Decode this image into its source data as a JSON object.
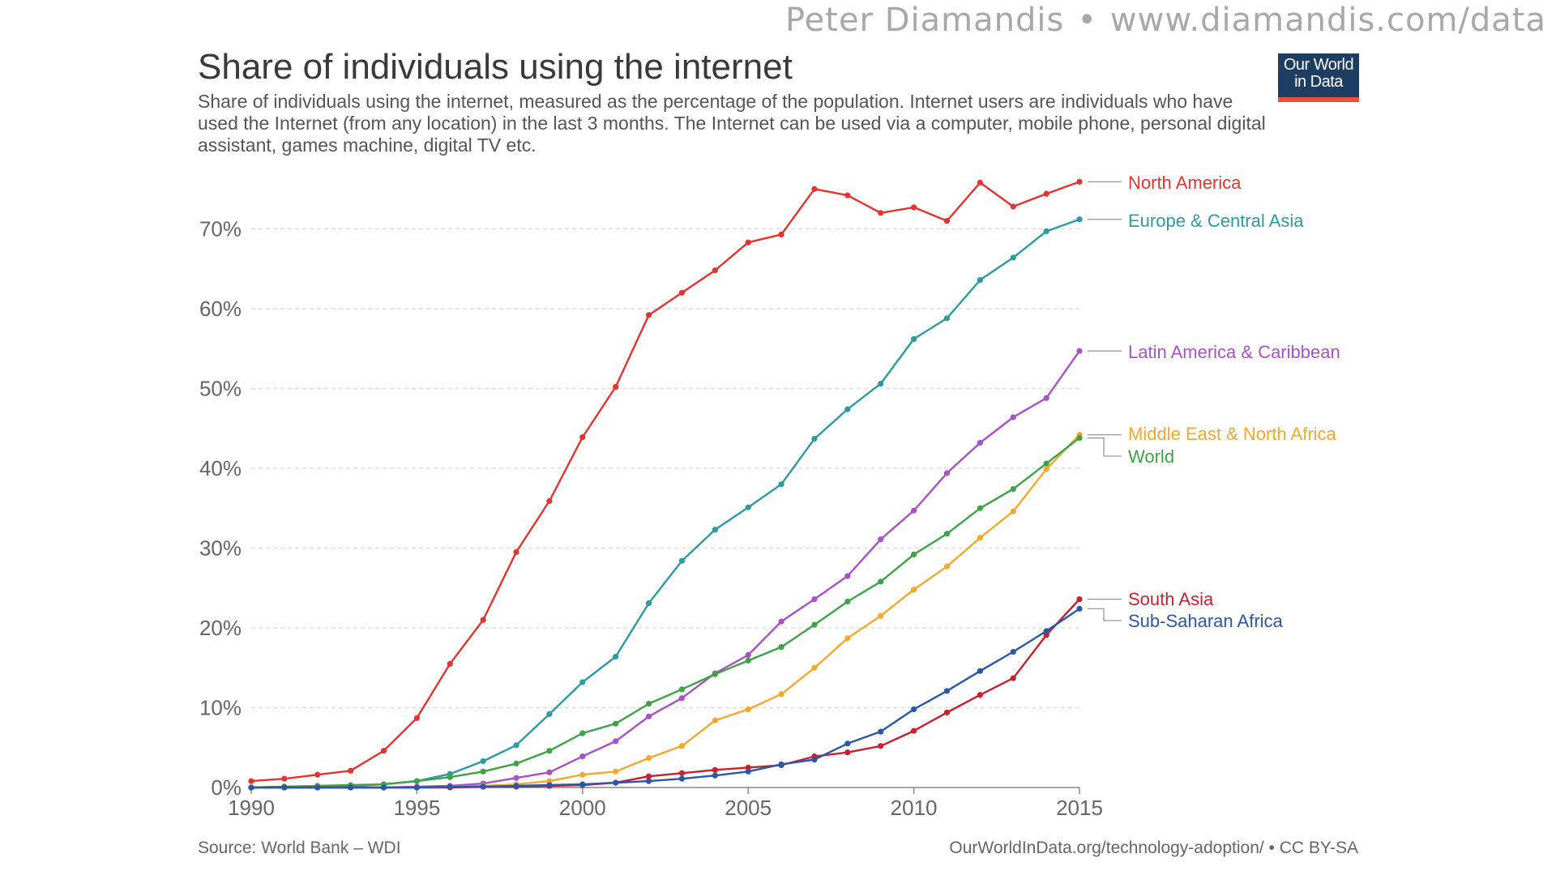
{
  "header": {
    "credit_name": "Peter Diamandis",
    "credit_separator": "•",
    "credit_url": "www.diamandis.com/data",
    "logo_line1": "Our World",
    "logo_line2": "in Data"
  },
  "footer": {
    "source": "Source: World Bank – WDI",
    "license": "OurWorldInData.org/technology-adoption/ • CC BY-SA"
  },
  "colors": {
    "logo_bg": "#1d3d63",
    "logo_bar": "#e6553b",
    "grid": "#dddddd"
  },
  "chart_data": {
    "type": "line",
    "title": "Share of individuals using the internet",
    "subtitle": "Share of individuals using the internet, measured as the percentage of the population. Internet users are individuals who have used the Internet (from any location) in the last 3 months. The Internet can be used via a computer, mobile phone, personal digital assistant, games machine, digital TV etc.",
    "xlabel": "",
    "ylabel": "",
    "xlim": [
      1990,
      2015
    ],
    "ylim": [
      0,
      75
    ],
    "x": [
      1990,
      1991,
      1992,
      1993,
      1994,
      1995,
      1996,
      1997,
      1998,
      1999,
      2000,
      2001,
      2002,
      2003,
      2004,
      2005,
      2006,
      2007,
      2008,
      2009,
      2010,
      2011,
      2012,
      2013,
      2014,
      2015
    ],
    "xticks": [
      1990,
      1995,
      2000,
      2005,
      2010,
      2015
    ],
    "xtick_labels": [
      "1990",
      "1995",
      "2000",
      "2005",
      "2010",
      "2015"
    ],
    "yticks": [
      0,
      10,
      20,
      30,
      40,
      50,
      60,
      70
    ],
    "ytick_labels": [
      "0%",
      "10%",
      "20%",
      "30%",
      "40%",
      "50%",
      "60%",
      "70%"
    ],
    "grid": true,
    "legend": "labels at right end of lines",
    "series": [
      {
        "name": "North America",
        "color": "#e3342f",
        "values": [
          0.8,
          1.1,
          1.6,
          2.1,
          4.6,
          8.7,
          15.5,
          21.0,
          29.5,
          35.9,
          43.9,
          50.2,
          59.2,
          62.0,
          64.8,
          68.3,
          69.3,
          75.0,
          74.2,
          72.0,
          72.7,
          71.0,
          75.8,
          72.8,
          74.4,
          75.9
        ]
      },
      {
        "name": "Europe & Central Asia",
        "color": "#2c9ba2",
        "values": [
          0.0,
          0.1,
          0.1,
          0.2,
          0.4,
          0.8,
          1.7,
          3.3,
          5.3,
          9.2,
          13.2,
          16.4,
          23.1,
          28.4,
          32.3,
          35.1,
          38.0,
          43.7,
          47.4,
          50.6,
          56.2,
          58.8,
          63.6,
          66.4,
          69.7,
          71.2
        ]
      },
      {
        "name": "Latin America & Caribbean",
        "color": "#a951c8",
        "values": [
          0.0,
          0.0,
          0.0,
          0.0,
          0.0,
          0.1,
          0.2,
          0.5,
          1.2,
          1.9,
          3.9,
          5.8,
          8.9,
          11.2,
          14.3,
          16.6,
          20.8,
          23.6,
          26.5,
          31.1,
          34.7,
          39.4,
          43.2,
          46.4,
          48.8,
          54.7
        ]
      },
      {
        "name": "Middle East & North Africa",
        "color": "#f5a82b",
        "values": [
          0.0,
          0.0,
          0.0,
          0.0,
          0.0,
          0.0,
          0.1,
          0.2,
          0.4,
          0.8,
          1.6,
          2.0,
          3.7,
          5.2,
          8.4,
          9.8,
          11.7,
          15.0,
          18.7,
          21.5,
          24.8,
          27.7,
          31.3,
          34.6,
          39.9,
          44.2
        ]
      },
      {
        "name": "World",
        "color": "#3ea346",
        "values": [
          0.0,
          0.1,
          0.2,
          0.3,
          0.4,
          0.8,
          1.3,
          2.0,
          3.0,
          4.6,
          6.8,
          8.0,
          10.5,
          12.3,
          14.2,
          15.9,
          17.6,
          20.4,
          23.3,
          25.8,
          29.2,
          31.8,
          35.0,
          37.4,
          40.6,
          43.8
        ]
      },
      {
        "name": "South Asia",
        "color": "#c8202f",
        "values": [
          0.0,
          0.0,
          0.0,
          0.0,
          0.0,
          0.0,
          0.0,
          0.1,
          0.1,
          0.2,
          0.3,
          0.6,
          1.4,
          1.8,
          2.2,
          2.5,
          2.8,
          3.9,
          4.4,
          5.2,
          7.1,
          9.4,
          11.6,
          13.7,
          19.1,
          23.6
        ]
      },
      {
        "name": "Sub-Saharan Africa",
        "color": "#2b58a6",
        "values": [
          0.0,
          0.0,
          0.0,
          0.0,
          0.0,
          0.0,
          0.1,
          0.1,
          0.2,
          0.3,
          0.4,
          0.6,
          0.8,
          1.1,
          1.5,
          2.0,
          2.9,
          3.5,
          5.5,
          7.0,
          9.8,
          12.1,
          14.6,
          17.0,
          19.6,
          22.4
        ]
      }
    ],
    "end_labels": [
      {
        "series": "North America",
        "text": "North America"
      },
      {
        "series": "Europe & Central Asia",
        "text": "Europe & Central Asia"
      },
      {
        "series": "Latin America & Caribbean",
        "text": "Latin America & Caribbean"
      },
      {
        "series": "Middle East & North Africa",
        "text": "Middle East & North Africa"
      },
      {
        "series": "World",
        "text": "World"
      },
      {
        "series": "South Asia",
        "text": "South Asia"
      },
      {
        "series": "Sub-Saharan Africa",
        "text": "Sub-Saharan Africa"
      }
    ]
  }
}
